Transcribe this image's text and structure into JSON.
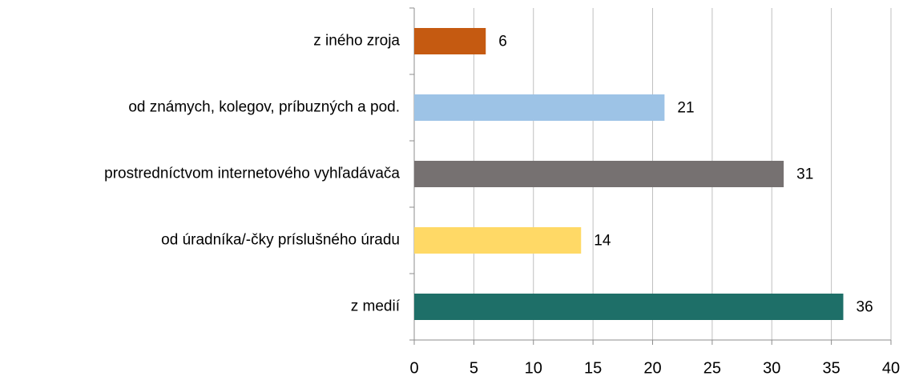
{
  "chart_data": {
    "type": "hbar",
    "categories": [
      "z iného zroja",
      "od známych, kolegov, príbuzných a pod.",
      "prostredníctvom internetového vyhľadávača",
      "od úradníka/-čky príslušného úradu",
      "z medií"
    ],
    "values": [
      6,
      21,
      31,
      14,
      36
    ],
    "colors": [
      "#c55a11",
      "#9dc3e6",
      "#767171",
      "#ffd966",
      "#1e6f68"
    ],
    "xlim": [
      0,
      40
    ],
    "xticks": [
      0,
      5,
      10,
      15,
      20,
      25,
      30,
      35,
      40
    ],
    "grid": true
  }
}
